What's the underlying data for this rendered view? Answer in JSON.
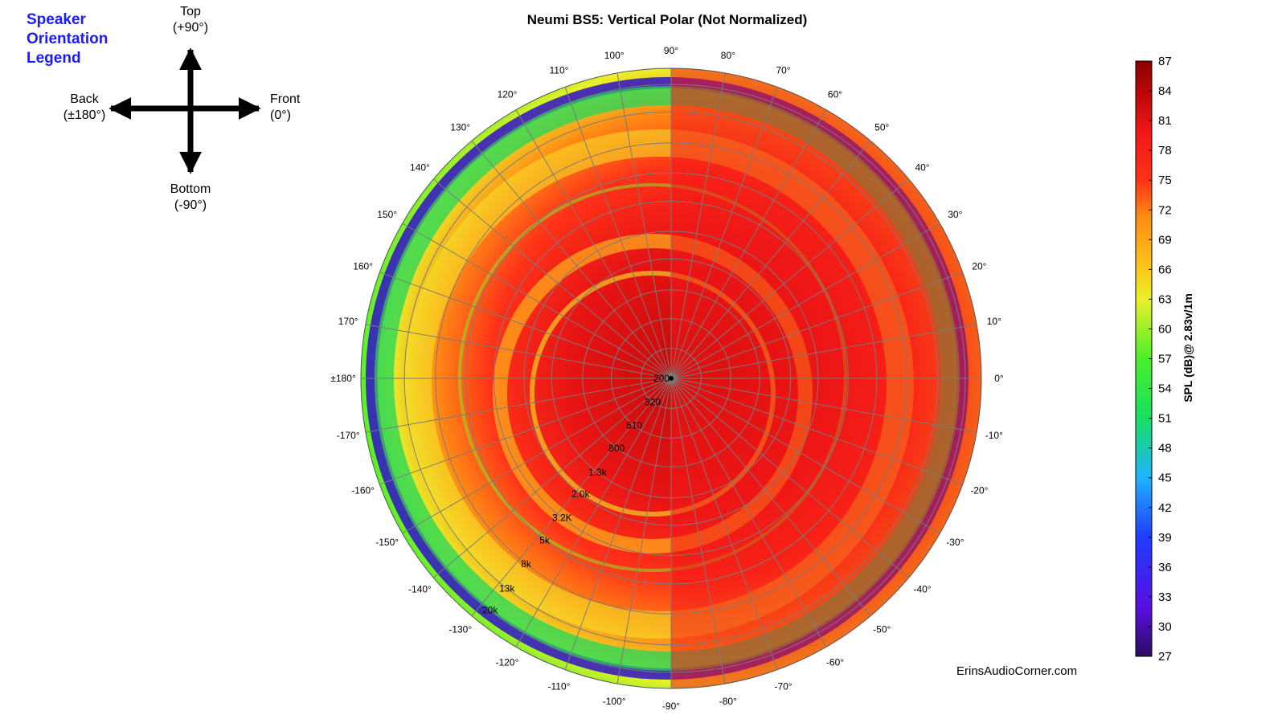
{
  "legend": {
    "title_lines": [
      "Speaker",
      "Orientation",
      "Legend"
    ],
    "top": [
      "Top",
      "(+90°)"
    ],
    "back": [
      "Back",
      "(±180°)"
    ],
    "front": [
      "Front",
      "(0°)"
    ],
    "bottom": [
      "Bottom",
      "(-90°)"
    ]
  },
  "credit": "ErinsAudioCorner.com",
  "colors": {
    "legend_text": "#1a1aff",
    "grid": "#7a7a7a",
    "colormap": [
      "#2b0a5e",
      "#5a0ee0",
      "#1f3cff",
      "#1fb3ff",
      "#18e060",
      "#4aef2a",
      "#eaf029",
      "#ffc21a",
      "#ff8a15",
      "#ff3118",
      "#f01818",
      "#b80606",
      "#8a0000"
    ]
  },
  "chart_data": {
    "type": "polar-heatmap",
    "title": "Neumi BS5: Vertical Polar (Not Normalized)",
    "angle_labels": [
      {
        "deg": 0,
        "text": "0°"
      },
      {
        "deg": 10,
        "text": "10°"
      },
      {
        "deg": 20,
        "text": "20°"
      },
      {
        "deg": 30,
        "text": "30°"
      },
      {
        "deg": 40,
        "text": "40°"
      },
      {
        "deg": 50,
        "text": "50°"
      },
      {
        "deg": 60,
        "text": "60°"
      },
      {
        "deg": 70,
        "text": "70°"
      },
      {
        "deg": 80,
        "text": "80°"
      },
      {
        "deg": 90,
        "text": "90°"
      },
      {
        "deg": 100,
        "text": "100°"
      },
      {
        "deg": 110,
        "text": "110°"
      },
      {
        "deg": 120,
        "text": "120°"
      },
      {
        "deg": 130,
        "text": "130°"
      },
      {
        "deg": 140,
        "text": "140°"
      },
      {
        "deg": 150,
        "text": "150°"
      },
      {
        "deg": 160,
        "text": "160°"
      },
      {
        "deg": 170,
        "text": "170°"
      },
      {
        "deg": 180,
        "text": "±180°"
      },
      {
        "deg": -170,
        "text": "-170°"
      },
      {
        "deg": -160,
        "text": "-160°"
      },
      {
        "deg": -150,
        "text": "-150°"
      },
      {
        "deg": -140,
        "text": "-140°"
      },
      {
        "deg": -130,
        "text": "-130°"
      },
      {
        "deg": -120,
        "text": "-120°"
      },
      {
        "deg": -110,
        "text": "-110°"
      },
      {
        "deg": -100,
        "text": "-100°"
      },
      {
        "deg": -90,
        "text": "-90°"
      },
      {
        "deg": -80,
        "text": "-80°"
      },
      {
        "deg": -70,
        "text": "-70°"
      },
      {
        "deg": -60,
        "text": "-60°"
      },
      {
        "deg": -50,
        "text": "-50°"
      },
      {
        "deg": -40,
        "text": "-40°"
      },
      {
        "deg": -30,
        "text": "-30°"
      },
      {
        "deg": -20,
        "text": "-20°"
      },
      {
        "deg": -10,
        "text": "-10°"
      }
    ],
    "radial_axis": {
      "quantity": "frequency",
      "tick_labels": [
        "200",
        "320",
        "510",
        "800",
        "1.3k",
        "2.0k",
        "3.2K",
        "5k",
        "8k",
        "13k",
        "20k"
      ],
      "tick_values_hz": [
        200,
        320,
        510,
        800,
        1300,
        2000,
        3200,
        5000,
        8000,
        13000,
        20000
      ]
    },
    "colorbar": {
      "label": "SPL (dB)@ 2.83v/1m",
      "range": [
        27,
        87
      ],
      "ticks": [
        87,
        84,
        81,
        78,
        75,
        72,
        69,
        66,
        63,
        60,
        57,
        54,
        51,
        48,
        45,
        42,
        39,
        36,
        33,
        30,
        27
      ]
    }
  }
}
